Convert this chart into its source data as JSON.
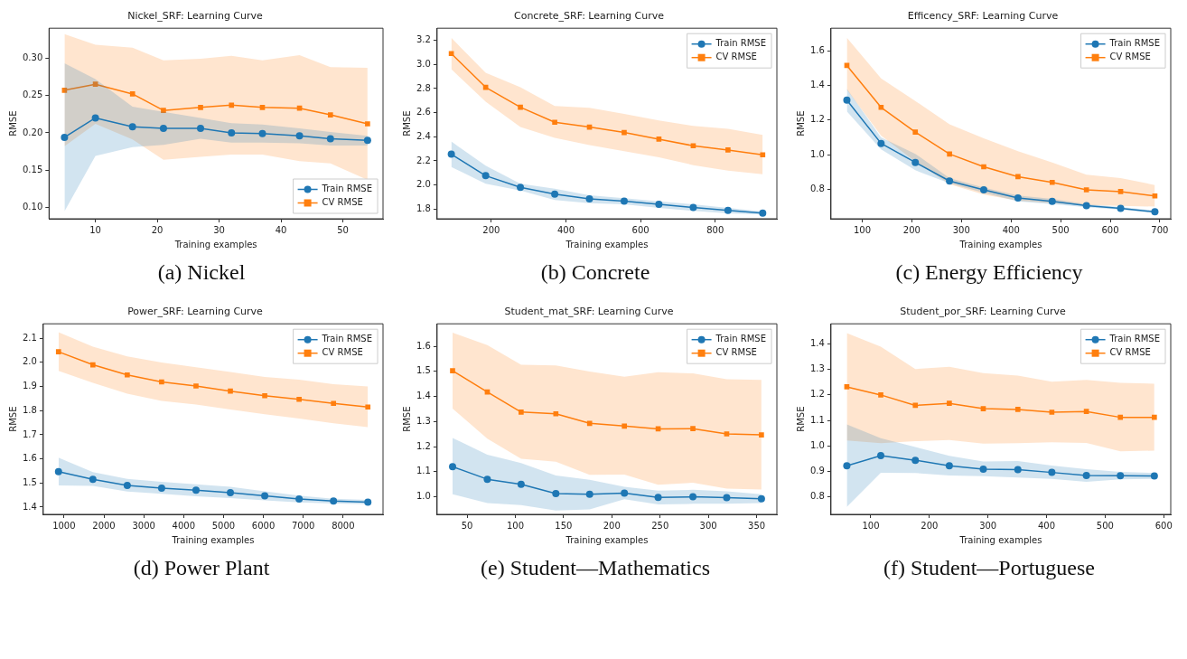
{
  "chart_data": [
    {
      "type": "line",
      "title": "Nickel_SRF: Learning Curve",
      "xlabel": "Training examples",
      "ylabel": "RMSE",
      "annotations": [
        "(a) Nickel"
      ],
      "x": [
        5,
        10,
        16,
        21,
        27,
        32,
        37,
        43,
        48,
        54
      ],
      "xlim": [
        2.5,
        56.5
      ],
      "xticks": [
        10,
        20,
        30,
        40,
        50
      ],
      "ylim": [
        0.085,
        0.34
      ],
      "yticks": [
        {
          "value": 0.1,
          "label": "0.10"
        },
        0.15,
        {
          "value": 0.2,
          "label": "0.20"
        },
        0.25,
        {
          "value": 0.3,
          "label": "0.30"
        }
      ],
      "grid": false,
      "legend": "bottom right",
      "series": [
        {
          "name": "Train RMSE",
          "color": "#1f77b4",
          "marker": "circle",
          "values": [
            0.194,
            0.22,
            0.208,
            0.206,
            0.206,
            0.2,
            0.199,
            0.196,
            0.192,
            0.19
          ],
          "lower": [
            0.095,
            0.169,
            0.181,
            0.184,
            0.192,
            0.187,
            0.187,
            0.186,
            0.183,
            0.183
          ],
          "upper": [
            0.293,
            0.272,
            0.235,
            0.228,
            0.22,
            0.213,
            0.211,
            0.206,
            0.201,
            0.196
          ]
        },
        {
          "name": "CV RMSE",
          "color": "#ff7f0e",
          "marker": "square",
          "values": [
            0.257,
            0.265,
            0.252,
            0.23,
            0.234,
            0.237,
            0.234,
            0.233,
            0.224,
            0.212
          ],
          "lower": [
            0.182,
            0.212,
            0.191,
            0.164,
            0.168,
            0.171,
            0.171,
            0.162,
            0.159,
            0.137
          ],
          "upper": [
            0.332,
            0.318,
            0.314,
            0.297,
            0.299,
            0.303,
            0.297,
            0.304,
            0.288,
            0.287
          ]
        }
      ]
    },
    {
      "type": "line",
      "title": "Concrete_SRF: Learning Curve",
      "xlabel": "Training examples",
      "ylabel": "RMSE",
      "annotations": [
        "(b) Concrete"
      ],
      "x": [
        93,
        185,
        278,
        370,
        463,
        556,
        649,
        741,
        834,
        927
      ],
      "xlim": [
        55,
        965
      ],
      "xticks": [
        200,
        400,
        600,
        800
      ],
      "ylim": [
        1.72,
        3.3
      ],
      "yticks": [
        1.8,
        {
          "value": 2,
          "label": "2.0"
        },
        2.2,
        2.4,
        2.6,
        2.8,
        {
          "value": 3,
          "label": "3.0"
        },
        3.2
      ],
      "grid": false,
      "legend": "top right",
      "series": [
        {
          "name": "Train RMSE",
          "color": "#1f77b4",
          "marker": "circle",
          "values": [
            2.255,
            2.077,
            1.98,
            1.925,
            1.885,
            1.866,
            1.84,
            1.814,
            1.79,
            1.767
          ],
          "lower": [
            2.15,
            2.01,
            1.955,
            1.875,
            1.85,
            1.84,
            1.81,
            1.785,
            1.765,
            1.755
          ],
          "upper": [
            2.36,
            2.16,
            2.01,
            1.97,
            1.915,
            1.89,
            1.865,
            1.84,
            1.81,
            1.78
          ]
        },
        {
          "name": "CV RMSE",
          "color": "#ff7f0e",
          "marker": "square",
          "values": [
            3.09,
            2.81,
            2.645,
            2.52,
            2.48,
            2.435,
            2.38,
            2.325,
            2.29,
            2.25
          ],
          "lower": [
            2.96,
            2.69,
            2.48,
            2.39,
            2.33,
            2.28,
            2.23,
            2.165,
            2.12,
            2.09
          ],
          "upper": [
            3.22,
            2.93,
            2.81,
            2.655,
            2.64,
            2.59,
            2.535,
            2.49,
            2.465,
            2.415
          ]
        }
      ]
    },
    {
      "type": "line",
      "title": "Efficency_SRF: Learning Curve",
      "xlabel": "Training examples",
      "ylabel": "RMSE",
      "annotations": [
        "(c) Energy Efficiency"
      ],
      "x": [
        69,
        138,
        207,
        276,
        345,
        414,
        483,
        552,
        621,
        690
      ],
      "xlim": [
        37,
        722
      ],
      "xticks": [
        100,
        200,
        300,
        400,
        500,
        600,
        700
      ],
      "ylim": [
        0.63,
        1.73
      ],
      "yticks": [
        0.8,
        {
          "value": 1,
          "label": "1.0"
        },
        1.2,
        1.4,
        1.6
      ],
      "grid": false,
      "legend": "top right",
      "series": [
        {
          "name": "Train RMSE",
          "color": "#1f77b4",
          "marker": "circle",
          "values": [
            1.315,
            1.065,
            0.955,
            0.848,
            0.797,
            0.75,
            0.73,
            0.706,
            0.69,
            0.67
          ],
          "lower": [
            1.25,
            1.03,
            0.91,
            0.835,
            0.78,
            0.73,
            0.715,
            0.697,
            0.682,
            0.662
          ],
          "upper": [
            1.38,
            1.1,
            1.005,
            0.865,
            0.81,
            0.765,
            0.745,
            0.715,
            0.698,
            0.678
          ]
        },
        {
          "name": "CV RMSE",
          "color": "#ff7f0e",
          "marker": "square",
          "values": [
            1.515,
            1.273,
            1.13,
            1.004,
            0.93,
            0.873,
            0.84,
            0.797,
            0.787,
            0.762
          ],
          "lower": [
            1.375,
            1.11,
            0.96,
            0.83,
            0.77,
            0.735,
            0.72,
            0.71,
            0.705,
            0.7
          ],
          "upper": [
            1.675,
            1.44,
            1.31,
            1.175,
            1.095,
            1.02,
            0.955,
            0.885,
            0.865,
            0.825
          ]
        }
      ]
    },
    {
      "type": "line",
      "title": "Power_SRF: Learning Curve",
      "xlabel": "Training examples",
      "ylabel": "RMSE",
      "annotations": [
        "(d) Power Plant"
      ],
      "x": [
        862,
        1724,
        2586,
        3448,
        4310,
        5172,
        6034,
        6896,
        7758,
        8620
      ],
      "xlim": [
        480,
        9000
      ],
      "xticks": [
        1000,
        2000,
        3000,
        4000,
        5000,
        6000,
        7000,
        8000
      ],
      "ylim": [
        1.37,
        2.16
      ],
      "yticks": [
        1.4,
        1.5,
        1.6,
        1.7,
        1.8,
        1.9,
        {
          "value": 2,
          "label": "2.0"
        },
        2.1
      ],
      "grid": false,
      "legend": "top right",
      "series": [
        {
          "name": "Train RMSE",
          "color": "#1f77b4",
          "marker": "circle",
          "values": [
            1.547,
            1.515,
            1.49,
            1.479,
            1.47,
            1.46,
            1.447,
            1.434,
            1.425,
            1.421
          ],
          "lower": [
            1.49,
            1.488,
            1.465,
            1.455,
            1.445,
            1.437,
            1.428,
            1.42,
            1.415,
            1.412
          ],
          "upper": [
            1.605,
            1.545,
            1.517,
            1.505,
            1.495,
            1.484,
            1.466,
            1.448,
            1.435,
            1.43
          ]
        },
        {
          "name": "CV RMSE",
          "color": "#ff7f0e",
          "marker": "square",
          "values": [
            2.044,
            1.99,
            1.948,
            1.919,
            1.902,
            1.881,
            1.862,
            1.847,
            1.83,
            1.815
          ],
          "lower": [
            1.965,
            1.915,
            1.87,
            1.84,
            1.825,
            1.805,
            1.785,
            1.767,
            1.748,
            1.732
          ],
          "upper": [
            2.125,
            2.065,
            2.025,
            2.0,
            1.98,
            1.96,
            1.94,
            1.928,
            1.91,
            1.9
          ]
        }
      ]
    },
    {
      "type": "line",
      "title": "Student_mat_SRF: Learning Curve",
      "xlabel": "Training examples",
      "ylabel": "RMSE",
      "annotations": [
        "(e) Student—Mathematics"
      ],
      "x": [
        35,
        71,
        106,
        142,
        177,
        213,
        248,
        284,
        319,
        355
      ],
      "xlim": [
        19,
        371
      ],
      "xticks": [
        50,
        100,
        150,
        200,
        250,
        300,
        350
      ],
      "ylim": [
        0.93,
        1.69
      ],
      "yticks": [
        {
          "value": 1,
          "label": "1.0"
        },
        1.1,
        1.2,
        1.3,
        1.4,
        1.5,
        1.6
      ],
      "grid": false,
      "legend": "top right",
      "series": [
        {
          "name": "Train RMSE",
          "color": "#1f77b4",
          "marker": "circle",
          "values": [
            1.12,
            1.07,
            1.05,
            1.013,
            1.01,
            1.015,
            0.998,
            1.0,
            0.997,
            0.992
          ],
          "lower": [
            1.01,
            0.975,
            0.967,
            0.945,
            0.95,
            0.99,
            0.97,
            0.972,
            0.972,
            0.975
          ],
          "upper": [
            1.235,
            1.168,
            1.135,
            1.085,
            1.068,
            1.04,
            1.025,
            1.028,
            1.022,
            1.01
          ]
        },
        {
          "name": "CV RMSE",
          "color": "#ff7f0e",
          "marker": "square",
          "values": [
            1.503,
            1.418,
            1.338,
            1.331,
            1.293,
            1.282,
            1.271,
            1.272,
            1.251,
            1.247
          ],
          "lower": [
            1.352,
            1.232,
            1.152,
            1.14,
            1.088,
            1.089,
            1.048,
            1.056,
            1.033,
            1.029
          ],
          "upper": [
            1.655,
            1.605,
            1.527,
            1.524,
            1.5,
            1.479,
            1.497,
            1.492,
            1.469,
            1.466
          ]
        }
      ]
    },
    {
      "type": "line",
      "title": "Student_por_SRF: Learning Curve",
      "xlabel": "Training examples",
      "ylabel": "RMSE",
      "annotations": [
        "(f) Student—Portuguese"
      ],
      "x": [
        59,
        117,
        176,
        234,
        292,
        351,
        409,
        468,
        526,
        584
      ],
      "xlim": [
        32,
        612
      ],
      "xticks": [
        100,
        200,
        300,
        400,
        500,
        600
      ],
      "ylim": [
        0.73,
        1.48
      ],
      "yticks": [
        0.8,
        0.9,
        {
          "value": 1,
          "label": "1.0"
        },
        1.1,
        1.2,
        1.3,
        1.4
      ],
      "grid": false,
      "legend": "top right",
      "series": [
        {
          "name": "Train RMSE",
          "color": "#1f77b4",
          "marker": "circle",
          "values": [
            0.921,
            0.961,
            0.943,
            0.921,
            0.908,
            0.906,
            0.895,
            0.883,
            0.882,
            0.881
          ],
          "lower": [
            0.759,
            0.894,
            0.893,
            0.883,
            0.88,
            0.875,
            0.87,
            0.858,
            0.868,
            0.87
          ],
          "upper": [
            1.084,
            1.03,
            0.995,
            0.96,
            0.938,
            0.94,
            0.922,
            0.908,
            0.897,
            0.893
          ]
        },
        {
          "name": "CV RMSE",
          "color": "#ff7f0e",
          "marker": "square",
          "values": [
            1.232,
            1.2,
            1.159,
            1.167,
            1.146,
            1.143,
            1.132,
            1.135,
            1.112,
            1.112
          ],
          "lower": [
            1.021,
            1.01,
            1.018,
            1.023,
            1.008,
            1.01,
            1.014,
            1.011,
            0.978,
            0.981
          ],
          "upper": [
            1.443,
            1.39,
            1.302,
            1.311,
            1.286,
            1.276,
            1.252,
            1.259,
            1.248,
            1.244
          ]
        }
      ]
    }
  ]
}
